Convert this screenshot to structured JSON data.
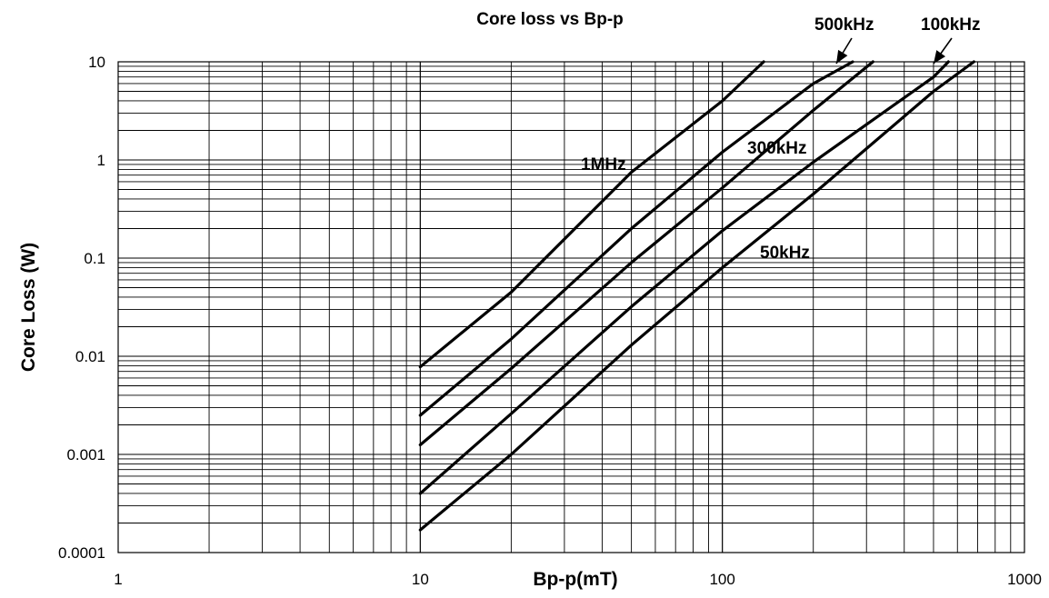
{
  "chart_data": {
    "type": "line",
    "title": "Core loss vs Bp-p",
    "xlabel": "Bp-p(mT)",
    "ylabel": "Core Loss (W)",
    "x_scale": "log",
    "y_scale": "log",
    "xlim": [
      1,
      1000
    ],
    "ylim": [
      0.0001,
      10
    ],
    "grid": true,
    "x_ticks": [
      "1",
      "10",
      "100",
      "1000"
    ],
    "y_ticks": [
      "10",
      "1",
      "0.1",
      "0.01",
      "0.001",
      "0.0001"
    ],
    "series": [
      {
        "name": "1MHz",
        "x": [
          10,
          20,
          50,
          100,
          137
        ],
        "y": [
          0.0078,
          0.045,
          0.75,
          4.0,
          10
        ]
      },
      {
        "name": "500kHz",
        "x": [
          10,
          20,
          50,
          100,
          200,
          270
        ],
        "y": [
          0.0025,
          0.015,
          0.2,
          1.2,
          6.0,
          10
        ]
      },
      {
        "name": "300kHz",
        "x": [
          10,
          20,
          50,
          100,
          200,
          315
        ],
        "y": [
          0.00125,
          0.0075,
          0.09,
          0.52,
          3.2,
          10
        ]
      },
      {
        "name": "100kHz",
        "x": [
          10,
          20,
          50,
          100,
          200,
          500,
          560
        ],
        "y": [
          0.0004,
          0.0026,
          0.032,
          0.19,
          0.95,
          7.0,
          10
        ]
      },
      {
        "name": "50kHz",
        "x": [
          10,
          20,
          50,
          100,
          200,
          500,
          680
        ],
        "y": [
          0.00017,
          0.001,
          0.013,
          0.08,
          0.45,
          5.0,
          10
        ]
      }
    ],
    "annotations": [
      {
        "text": "1MHz"
      },
      {
        "text": "500kHz"
      },
      {
        "text": "300kHz"
      },
      {
        "text": "100kHz"
      },
      {
        "text": "50kHz"
      }
    ]
  }
}
